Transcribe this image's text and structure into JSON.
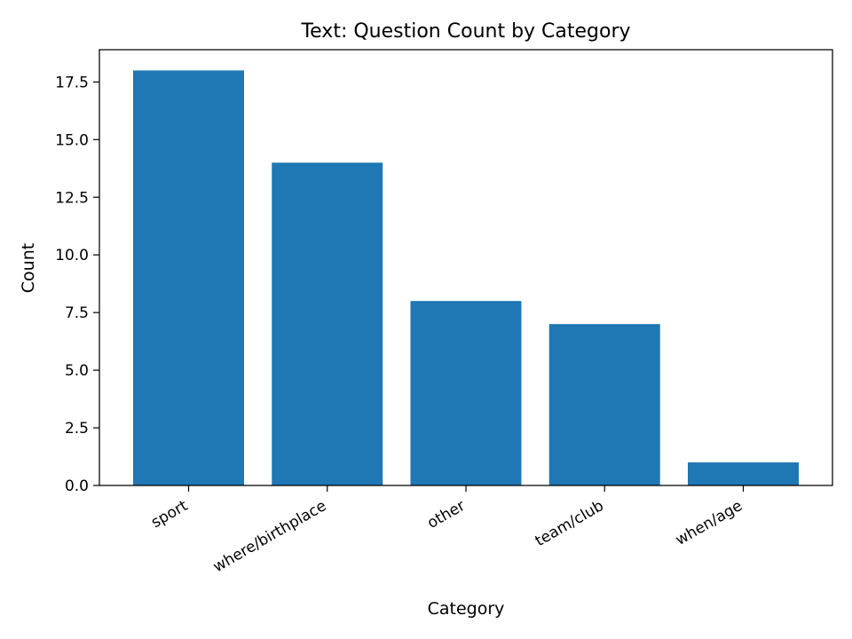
{
  "chart_data": {
    "type": "bar",
    "title": "Text: Question Count by Category",
    "xlabel": "Category",
    "ylabel": "Count",
    "categories": [
      "sport",
      "where/birthplace",
      "other",
      "team/club",
      "when/age"
    ],
    "values": [
      18,
      14,
      8,
      7,
      1
    ],
    "ylim": [
      0,
      18.9
    ],
    "yticks": [
      0.0,
      2.5,
      5.0,
      7.5,
      10.0,
      12.5,
      15.0,
      17.5
    ],
    "ytick_labels": [
      "0.0",
      "2.5",
      "5.0",
      "7.5",
      "10.0",
      "12.5",
      "15.0",
      "17.5"
    ],
    "bar_color": "#1f77b4",
    "grid": false,
    "legend": "none"
  }
}
